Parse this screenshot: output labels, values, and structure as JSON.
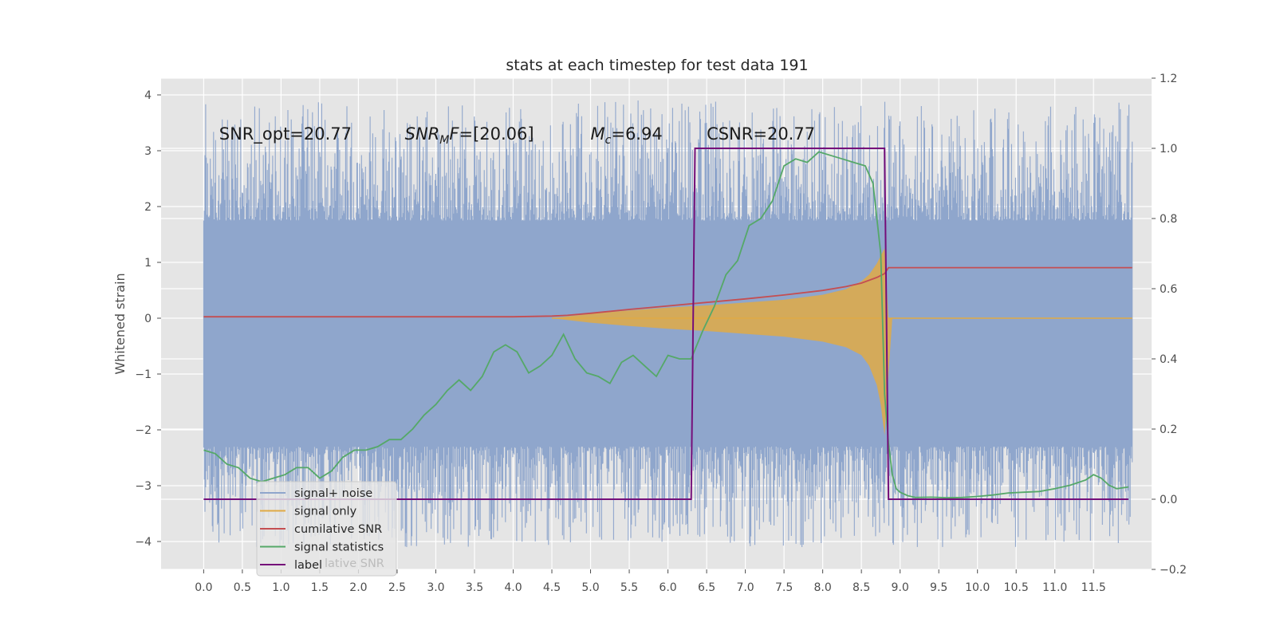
{
  "chart_data": {
    "type": "line",
    "title": "stats at each timestep for test data 191",
    "ylabel": "Whitened strain",
    "xlim": [
      -0.55,
      12.25
    ],
    "ylim": [
      -4.5,
      4.3
    ],
    "y2lim": [
      -0.2,
      1.2
    ],
    "x_ticks": [
      0.0,
      0.5,
      1.0,
      1.5,
      2.0,
      2.5,
      3.0,
      3.5,
      4.0,
      4.5,
      5.0,
      5.5,
      6.0,
      6.5,
      7.0,
      7.5,
      8.0,
      8.5,
      9.0,
      9.5,
      10.0,
      10.5,
      11.0,
      11.5
    ],
    "x_tick_labels": [
      "0.0",
      "0.5",
      "1.0",
      "1.5",
      "2.0",
      "2.5",
      "3.0",
      "3.5",
      "4.0",
      "4.5",
      "5.0",
      "5.5",
      "6.0",
      "6.5",
      "7.0",
      "7.5",
      "8.0",
      "8.5",
      "9.0",
      "9.5",
      "10.0",
      "10.5",
      "11.0",
      "11.5"
    ],
    "y_ticks": [
      4,
      3,
      2,
      1,
      0,
      -1,
      -2,
      -3,
      -4
    ],
    "y_tick_labels": [
      "4",
      "3",
      "2",
      "1",
      "0",
      "−1",
      "−2",
      "−3",
      "−4"
    ],
    "y2_ticks": [
      1.2,
      1.0,
      0.8,
      0.6,
      0.4,
      0.2,
      0.0,
      -0.2
    ],
    "y2_tick_labels": [
      "1.2",
      "1.0",
      "0.8",
      "0.6",
      "0.4",
      "0.2",
      "0.0",
      "−0.2"
    ],
    "grid": true,
    "legend_position": "lower-left",
    "annotations": [
      {
        "parts": [
          {
            "text": "SNR_opt=20.77",
            "italic": false
          }
        ],
        "x": 0.2,
        "y": 3.2
      },
      {
        "parts": [
          {
            "text": "SNR",
            "italic": true
          },
          {
            "text": "M",
            "italic": true,
            "sub": true
          },
          {
            "text": "F",
            "italic": true
          },
          {
            "text": "=[20.06]",
            "italic": false
          }
        ],
        "x": 2.6,
        "y": 3.2
      },
      {
        "parts": [
          {
            "text": "M",
            "italic": true
          },
          {
            "text": "c",
            "italic": true,
            "sub": true
          },
          {
            "text": "=6.94",
            "italic": false
          }
        ],
        "x": 5.0,
        "y": 3.2
      },
      {
        "parts": [
          {
            "text": "CSNR=20.77",
            "italic": false
          }
        ],
        "x": 6.5,
        "y": 3.2
      }
    ],
    "series": [
      {
        "name": "signal+ noise",
        "axis": "left",
        "color": "#8fa6cc",
        "noise_band": {
          "x_start": 0.0,
          "x_end": 12.0,
          "dense_min": -2.3,
          "dense_max": 1.75,
          "extreme_min": -4.1,
          "extreme_max": 3.9
        }
      },
      {
        "name": "signal only",
        "axis": "left",
        "color": "#e0aa45",
        "envelope": {
          "x": [
            4.5,
            5.0,
            5.5,
            6.0,
            6.5,
            7.0,
            7.5,
            8.0,
            8.3,
            8.5,
            8.6,
            8.7,
            8.75,
            8.8,
            8.85,
            8.9,
            12.0
          ],
          "upper": [
            0.0,
            0.08,
            0.14,
            0.19,
            0.23,
            0.28,
            0.33,
            0.42,
            0.52,
            0.66,
            0.78,
            0.98,
            1.12,
            1.25,
            0.0,
            0.0,
            0.0
          ],
          "lower": [
            0.0,
            -0.08,
            -0.14,
            -0.19,
            -0.23,
            -0.28,
            -0.33,
            -0.42,
            -0.52,
            -0.66,
            -0.85,
            -1.2,
            -1.55,
            -2.1,
            -1.0,
            0.0,
            0.0
          ]
        }
      },
      {
        "name": "cumilative SNR",
        "axis": "right",
        "color": "#c44e52",
        "x": [
          0.0,
          4.0,
          4.5,
          4.7,
          5.0,
          5.5,
          6.0,
          6.5,
          7.0,
          7.5,
          8.0,
          8.3,
          8.5,
          8.7,
          8.8,
          8.85,
          12.0
        ],
        "values": [
          0.52,
          0.52,
          0.522,
          0.524,
          0.53,
          0.541,
          0.551,
          0.561,
          0.571,
          0.582,
          0.595,
          0.606,
          0.616,
          0.632,
          0.643,
          0.66,
          0.66
        ]
      },
      {
        "name": "signal statistics",
        "axis": "right",
        "color": "#55a868",
        "x": [
          0.0,
          0.15,
          0.3,
          0.45,
          0.6,
          0.75,
          0.9,
          1.05,
          1.2,
          1.35,
          1.5,
          1.65,
          1.8,
          1.95,
          2.1,
          2.25,
          2.4,
          2.55,
          2.7,
          2.85,
          3.0,
          3.15,
          3.3,
          3.45,
          3.6,
          3.75,
          3.9,
          4.05,
          4.2,
          4.35,
          4.5,
          4.65,
          4.8,
          4.95,
          5.1,
          5.25,
          5.4,
          5.55,
          5.7,
          5.85,
          6.0,
          6.15,
          6.3,
          6.45,
          6.6,
          6.75,
          6.9,
          7.05,
          7.2,
          7.35,
          7.5,
          7.65,
          7.8,
          7.95,
          8.1,
          8.25,
          8.4,
          8.55,
          8.65,
          8.75,
          8.8,
          8.85,
          8.9,
          8.95,
          9.0,
          9.1,
          9.2,
          9.4,
          9.6,
          9.8,
          10.0,
          10.2,
          10.4,
          10.6,
          10.8,
          11.0,
          11.2,
          11.4,
          11.5,
          11.6,
          11.7,
          11.8,
          11.95
        ],
        "values": [
          0.14,
          0.13,
          0.1,
          0.09,
          0.06,
          0.05,
          0.06,
          0.07,
          0.09,
          0.09,
          0.06,
          0.08,
          0.12,
          0.14,
          0.14,
          0.15,
          0.17,
          0.17,
          0.2,
          0.24,
          0.27,
          0.31,
          0.34,
          0.31,
          0.35,
          0.42,
          0.44,
          0.42,
          0.36,
          0.38,
          0.41,
          0.47,
          0.4,
          0.36,
          0.35,
          0.33,
          0.39,
          0.41,
          0.38,
          0.35,
          0.41,
          0.4,
          0.4,
          0.48,
          0.55,
          0.64,
          0.68,
          0.78,
          0.8,
          0.85,
          0.95,
          0.97,
          0.96,
          0.99,
          0.98,
          0.97,
          0.96,
          0.95,
          0.9,
          0.7,
          0.3,
          0.16,
          0.07,
          0.03,
          0.02,
          0.01,
          0.005,
          0.006,
          0.004,
          0.005,
          0.008,
          0.012,
          0.018,
          0.02,
          0.022,
          0.03,
          0.04,
          0.055,
          0.07,
          0.06,
          0.04,
          0.03,
          0.035
        ]
      },
      {
        "name": "label",
        "axis": "right",
        "color": "#750f7a",
        "x": [
          0.0,
          6.3,
          6.35,
          8.8,
          8.85,
          11.95
        ],
        "values": [
          0.0,
          0.0,
          1.0,
          1.0,
          0.0,
          0.0
        ]
      }
    ],
    "legend": [
      {
        "label": "signal+ noise",
        "color": "#8fa6cc"
      },
      {
        "label": "signal only",
        "color": "#e0aa45"
      },
      {
        "label": "cumilative SNR",
        "color": "#c44e52"
      },
      {
        "label": "signal statistics",
        "color": "#55a868"
      },
      {
        "label": "label",
        "color": "#750f7a"
      }
    ],
    "legend_ghost_text": "lative SNR"
  }
}
